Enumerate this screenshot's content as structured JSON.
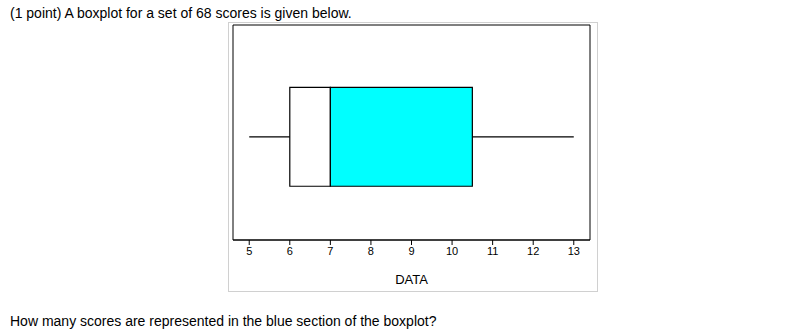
{
  "chart_data": {
    "type": "boxplot",
    "title": "(1 point) A boxplot for a set of 68 scores is given below.",
    "x_label": "DATA",
    "caption": "How many scores are represented in the blue section of the boxplot?",
    "min": 5,
    "q1": 6,
    "median": 7,
    "q3": 10.5,
    "max": 13,
    "colors": [
      "#ffffff",
      "#00ffff"
    ],
    "xlim": [
      4.6,
      13.4
    ],
    "xticks": [
      5,
      6,
      7,
      8,
      9,
      10,
      11,
      12,
      13
    ],
    "tick_labels": "x",
    "grid": false
  }
}
